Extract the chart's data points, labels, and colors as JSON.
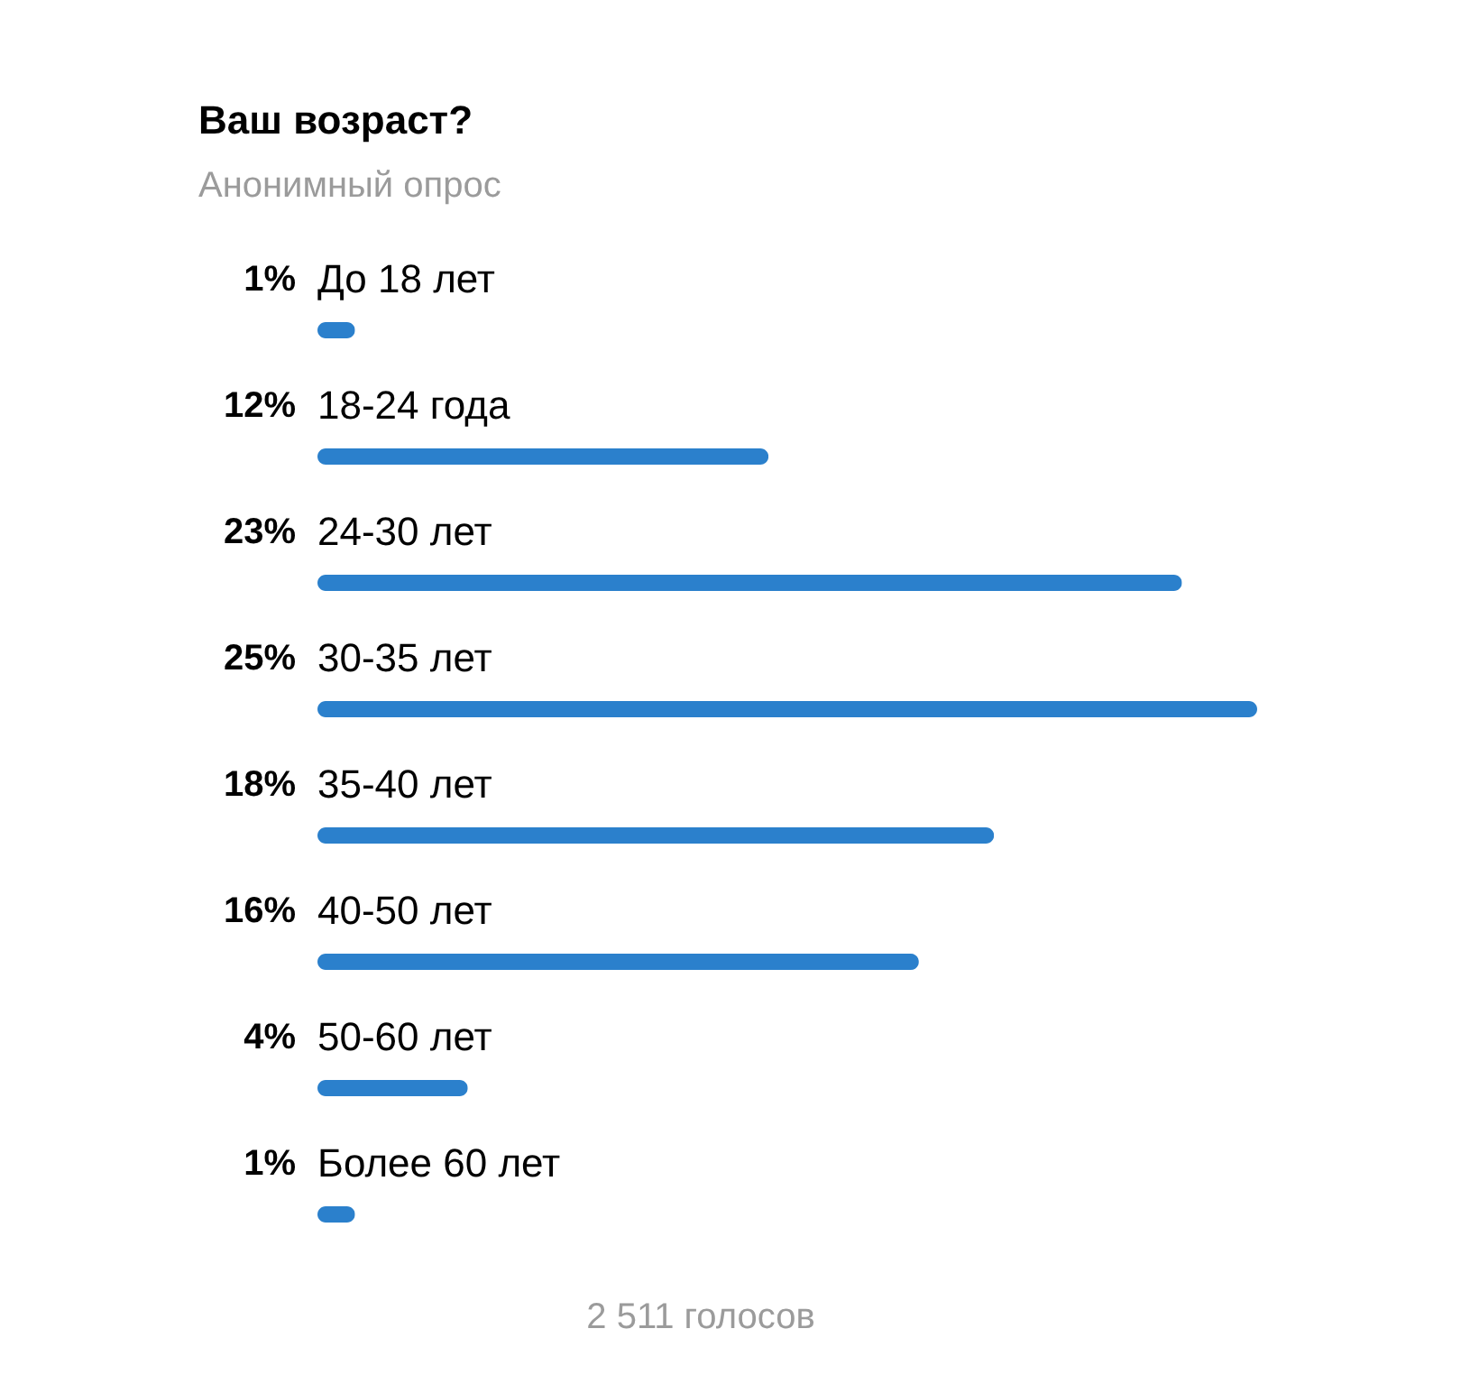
{
  "chart_data": {
    "type": "bar",
    "orientation": "horizontal",
    "title": "Ваш возраст?",
    "subtitle": "Анонимный опрос",
    "categories": [
      "До 18 лет",
      "18-24 года",
      "24-30 лет",
      "30-35 лет",
      "35-40 лет",
      "40-50 лет",
      "50-60 лет",
      "Более 60 лет"
    ],
    "values": [
      1,
      12,
      23,
      25,
      18,
      16,
      4,
      1
    ],
    "value_labels": [
      "1%",
      "12%",
      "23%",
      "25%",
      "18%",
      "16%",
      "4%",
      "1%"
    ],
    "color": "#2b80cc",
    "annotations": [
      "2 511 голосов"
    ]
  }
}
